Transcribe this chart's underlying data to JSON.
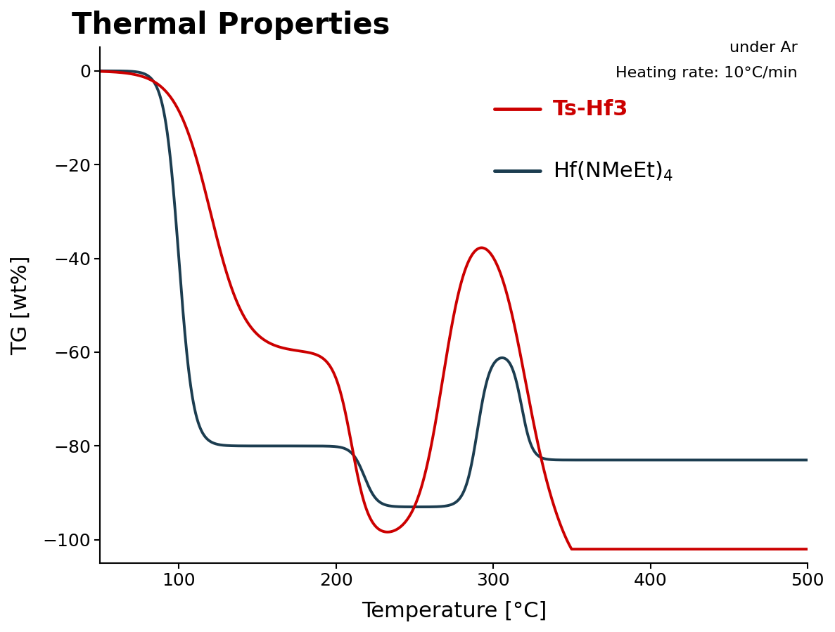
{
  "title": "Thermal Properties",
  "annotation_line1": "under Ar",
  "annotation_line2": "Heating rate: 10°C/min",
  "xlabel": "Temperature [°C]",
  "ylabel": "TG [wt%]",
  "xlim": [
    50,
    500
  ],
  "ylim": [
    -105,
    5
  ],
  "xticks": [
    100,
    200,
    300,
    400,
    500
  ],
  "yticks": [
    0,
    -20,
    -40,
    -60,
    -80,
    -100
  ],
  "red_color": "#cc0000",
  "teal_color": "#1c3d50",
  "background_color": "#ffffff",
  "legend_ts_hf3": "Ts-Hf3",
  "legend_hf": "Hf(NMeEt)$_4$",
  "linewidth": 2.8
}
